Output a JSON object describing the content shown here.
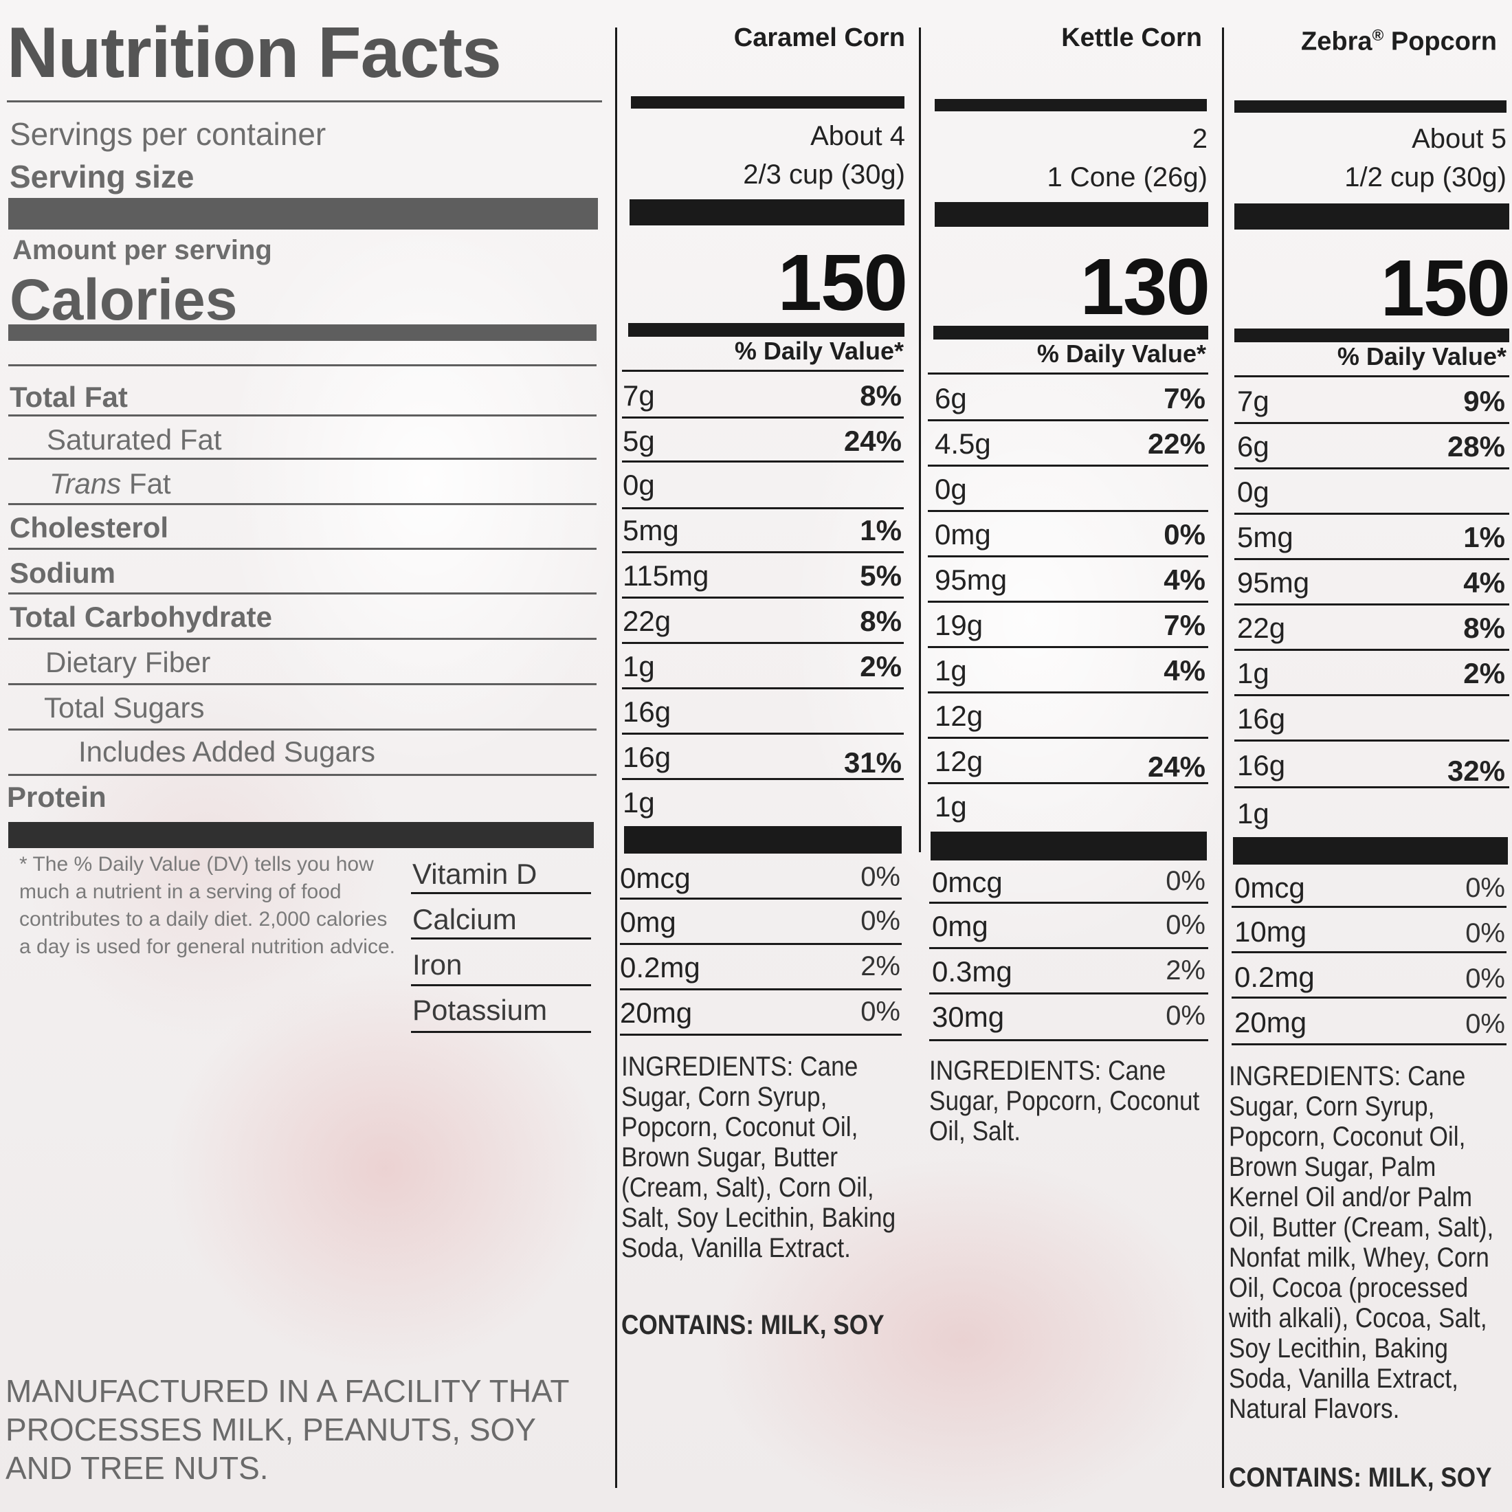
{
  "label": {
    "title": "Nutrition Facts",
    "servings_label": "Servings per container",
    "serving_size_label": "Serving size",
    "amount_per_serving": "Amount per serving",
    "calories_label": "Calories",
    "daily_value_header": "% Daily Value*",
    "nutrients": {
      "total_fat": "Total Fat",
      "saturated_fat": "Saturated Fat",
      "trans_fat_italic": "Trans",
      "trans_fat_rest": " Fat",
      "cholesterol": "Cholesterol",
      "sodium": "Sodium",
      "total_carbohydrate": "Total Carbohydrate",
      "dietary_fiber": "Dietary Fiber",
      "total_sugars": "Total Sugars",
      "added_sugars": "Includes Added Sugars",
      "protein": "Protein"
    },
    "vitamins": {
      "vitamin_d": "Vitamin D",
      "calcium": "Calcium",
      "iron": "Iron",
      "potassium": "Potassium"
    },
    "footnote": "* The % Daily Value (DV) tells you how much a nutrient in a serving of food contributes to a daily diet. 2,000 calories a day is used for general nutrition advice.",
    "facility_note": "MANUFACTURED IN A FACILITY THAT PROCESSES MILK, PEANUTS, SOY AND TREE NUTS."
  },
  "products": [
    {
      "name": "Caramel Corn",
      "name_sup": "",
      "servings": "About 4",
      "serving_size": "2/3 cup (30g)",
      "calories": "150",
      "total_fat": "7g",
      "total_fat_dv": "8%",
      "saturated_fat": "5g",
      "saturated_fat_dv": "24%",
      "trans_fat": "0g",
      "cholesterol": "5mg",
      "cholesterol_dv": "1%",
      "sodium": "115mg",
      "sodium_dv": "5%",
      "total_carbohydrate": "22g",
      "total_carbohydrate_dv": "8%",
      "dietary_fiber": "1g",
      "dietary_fiber_dv": "2%",
      "total_sugars": "16g",
      "added_sugars": "16g",
      "added_sugars_dv": "31%",
      "protein": "1g",
      "vitamin_d": "0mcg",
      "vitamin_d_dv": "0%",
      "calcium": "0mg",
      "calcium_dv": "0%",
      "iron": "0.2mg",
      "iron_dv": "2%",
      "potassium": "20mg",
      "potassium_dv": "0%",
      "ingredients": "INGREDIENTS: Cane Sugar, Corn Syrup, Popcorn, Coconut Oil, Brown Sugar, Butter (Cream, Salt), Corn Oil, Salt, Soy Lecithin, Baking Soda, Vanilla Extract.",
      "contains": "CONTAINS: MILK, SOY"
    },
    {
      "name": "Kettle Corn",
      "name_sup": "",
      "servings": "2",
      "serving_size": "1 Cone (26g)",
      "calories": "130",
      "total_fat": "6g",
      "total_fat_dv": "7%",
      "saturated_fat": "4.5g",
      "saturated_fat_dv": "22%",
      "trans_fat": "0g",
      "cholesterol": "0mg",
      "cholesterol_dv": "0%",
      "sodium": "95mg",
      "sodium_dv": "4%",
      "total_carbohydrate": "19g",
      "total_carbohydrate_dv": "7%",
      "dietary_fiber": "1g",
      "dietary_fiber_dv": "4%",
      "total_sugars": "12g",
      "added_sugars": "12g",
      "added_sugars_dv": "24%",
      "protein": "1g",
      "vitamin_d": "0mcg",
      "vitamin_d_dv": "0%",
      "calcium": "0mg",
      "calcium_dv": "0%",
      "iron": "0.3mg",
      "iron_dv": "2%",
      "potassium": "30mg",
      "potassium_dv": "0%",
      "ingredients": "INGREDIENTS: Cane Sugar, Popcorn, Coconut Oil, Salt.",
      "contains": ""
    },
    {
      "name": "Zebra",
      "name_sup": "®",
      "name_rest": " Popcorn",
      "servings": "About 5",
      "serving_size": "1/2 cup (30g)",
      "calories": "150",
      "total_fat": "7g",
      "total_fat_dv": "9%",
      "saturated_fat": "6g",
      "saturated_fat_dv": "28%",
      "trans_fat": "0g",
      "cholesterol": "5mg",
      "cholesterol_dv": "1%",
      "sodium": "95mg",
      "sodium_dv": "4%",
      "total_carbohydrate": "22g",
      "total_carbohydrate_dv": "8%",
      "dietary_fiber": "1g",
      "dietary_fiber_dv": "2%",
      "total_sugars": "16g",
      "added_sugars": "16g",
      "added_sugars_dv": "32%",
      "protein": "1g",
      "vitamin_d": "0mcg",
      "vitamin_d_dv": "0%",
      "calcium": "10mg",
      "calcium_dv": "0%",
      "iron": "0.2mg",
      "iron_dv": "0%",
      "potassium": "20mg",
      "potassium_dv": "0%",
      "ingredients": "INGREDIENTS: Cane Sugar, Corn Syrup, Popcorn, Coconut Oil, Brown Sugar, Palm Kernel Oil and/or Palm Oil, Butter (Cream, Salt), Nonfat milk, Whey, Corn Oil, Cocoa (processed with alkali), Cocoa, Salt, Soy Lecithin, Baking Soda, Vanilla Extract, Natural Flavors.",
      "contains": "CONTAINS: MILK, SOY"
    }
  ]
}
